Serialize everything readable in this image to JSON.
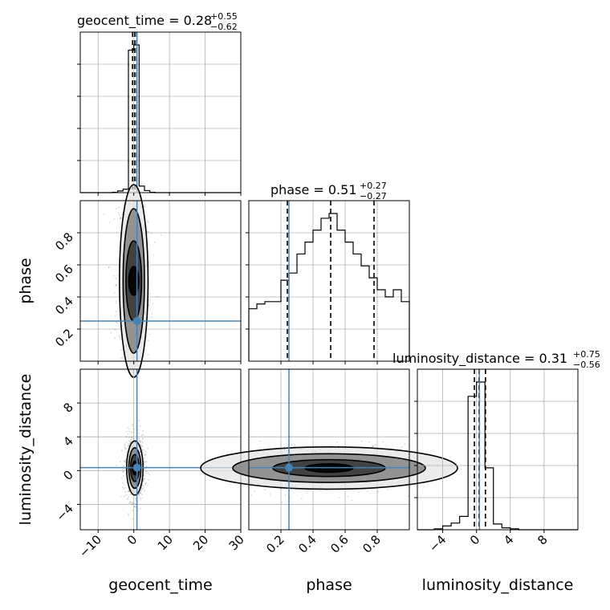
{
  "chart_data": {
    "type": "corner",
    "parameters": [
      "geocent_time",
      "phase",
      "luminosity_distance"
    ],
    "truth_color": "#4682b4",
    "truths": {
      "geocent_time": 0.9,
      "phase": 0.25,
      "luminosity_distance": 0.35
    },
    "panel_titles": {
      "geocent_time": {
        "name": "geocent_time",
        "eq": "=",
        "median": "0.28",
        "upper": "+0.55",
        "lower": "−0.62"
      },
      "phase": {
        "name": "phase",
        "eq": "=",
        "median": "0.51",
        "upper": "+0.27",
        "lower": "−0.27"
      },
      "luminosity_distance": {
        "name": "luminosity_distance",
        "eq": "=",
        "median": "0.31",
        "upper": "+0.75",
        "lower": "−0.56"
      }
    },
    "quantile_lines": {
      "geocent_time": [
        -0.34,
        0.28,
        0.83
      ],
      "phase": [
        0.24,
        0.51,
        0.78
      ],
      "luminosity_distance": [
        -0.25,
        0.31,
        1.06
      ]
    },
    "ranges": {
      "geocent_time": [
        -15,
        30
      ],
      "phase": [
        0.0,
        1.0
      ],
      "luminosity_distance": [
        -7,
        12
      ]
    },
    "axis_labels": {
      "x": [
        "geocent_time",
        "phase",
        "luminosity_distance"
      ],
      "y": [
        "phase",
        "luminosity_distance"
      ]
    },
    "ticks": {
      "geocent_time": [
        "−10",
        "0",
        "10",
        "20",
        "30"
      ],
      "phase": [
        "0.2",
        "0.4",
        "0.6",
        "0.8"
      ],
      "luminosity_distance": [
        "−4",
        "0",
        "4",
        "8"
      ]
    },
    "histograms": {
      "geocent_time": {
        "edges": [
          -15,
          -13.5,
          -12,
          -10.5,
          -9,
          -7.5,
          -6,
          -4.5,
          -3,
          -1.5,
          0,
          1.5,
          3,
          4.5,
          6,
          7.5,
          9,
          10.5,
          12,
          13.5,
          15,
          16.5,
          18,
          19.5,
          21,
          22.5,
          24,
          25.5,
          27,
          28.5,
          30
        ],
        "counts": [
          0,
          0,
          0,
          0,
          0,
          0,
          0.01,
          0.05,
          0.1,
          4.15,
          4.3,
          0.19,
          0.06,
          0.01,
          0,
          0,
          0,
          0,
          0,
          0,
          0,
          0,
          0,
          0,
          0,
          0,
          0,
          0,
          0,
          0
        ]
      },
      "phase": {
        "edges": [
          0.0,
          0.05,
          0.1,
          0.15,
          0.2,
          0.25,
          0.3,
          0.35,
          0.4,
          0.45,
          0.5,
          0.55,
          0.6,
          0.65,
          0.7,
          0.75,
          0.8,
          0.85,
          0.9,
          0.95,
          1.0
        ],
        "counts": [
          0.22,
          0.24,
          0.25,
          0.25,
          0.34,
          0.37,
          0.45,
          0.5,
          0.55,
          0.6,
          0.62,
          0.55,
          0.5,
          0.45,
          0.4,
          0.35,
          0.3,
          0.27,
          0.3,
          0.25
        ]
      },
      "luminosity_distance": {
        "edges": [
          -7,
          -6,
          -5,
          -4,
          -3,
          -2,
          -1,
          0,
          1,
          2,
          3,
          4,
          5,
          6,
          7,
          8,
          9,
          10,
          11,
          12
        ],
        "counts": [
          0,
          0,
          0.01,
          0.04,
          0.07,
          0.14,
          1.4,
          1.55,
          0.65,
          0.06,
          0.02,
          0.01,
          0,
          0,
          0,
          0,
          0,
          0,
          0
        ]
      }
    },
    "contour_pairs": [
      {
        "x": "geocent_time",
        "y": "phase",
        "center": [
          0.0,
          0.5
        ],
        "widths": [
          1.4,
          2.2,
          3.0,
          4.0
        ],
        "heights": [
          0.09,
          0.25,
          0.45,
          0.6
        ]
      },
      {
        "x": "geocent_time",
        "y": "luminosity_distance",
        "center": [
          0.3,
          0.3
        ],
        "widths": [
          0.7,
          1.2,
          1.7,
          2.3
        ],
        "heights": [
          0.8,
          1.6,
          2.4,
          3.2
        ]
      },
      {
        "x": "phase",
        "y": "luminosity_distance",
        "center": [
          0.5,
          0.3
        ],
        "widths": [
          0.15,
          0.35,
          0.6,
          0.8
        ],
        "heights": [
          0.5,
          1.0,
          1.7,
          2.5
        ]
      }
    ],
    "grid": true
  }
}
